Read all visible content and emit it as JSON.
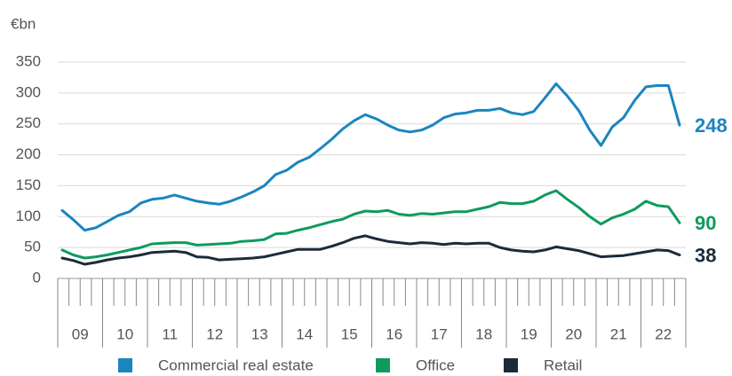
{
  "chart_data": {
    "type": "line",
    "y_label": "€bn",
    "year_labels": [
      "09",
      "10",
      "11",
      "12",
      "13",
      "14",
      "15",
      "16",
      "17",
      "18",
      "19",
      "20",
      "21",
      "22"
    ],
    "ylim": [
      0,
      350
    ],
    "yticks": [
      0,
      50,
      100,
      150,
      200,
      250,
      300,
      350
    ],
    "grid": true,
    "series": [
      {
        "name": "Commercial real estate",
        "color": "#1a85c0",
        "values": [
          110,
          95,
          78,
          82,
          92,
          102,
          108,
          122,
          128,
          130,
          135,
          130,
          125,
          122,
          120,
          125,
          132,
          140,
          150,
          168,
          175,
          188,
          196,
          210,
          225,
          242,
          255,
          265,
          258,
          248,
          240,
          237,
          240,
          248,
          260,
          266,
          268,
          272,
          272,
          275,
          268,
          265,
          270,
          292,
          315,
          295,
          272,
          240,
          215,
          245,
          260,
          288,
          310,
          312,
          312,
          248
        ]
      },
      {
        "name": "Office",
        "color": "#0f9a5e",
        "values": [
          46,
          38,
          33,
          35,
          38,
          42,
          46,
          50,
          56,
          57,
          58,
          58,
          54,
          55,
          56,
          57,
          60,
          61,
          63,
          72,
          73,
          78,
          82,
          87,
          92,
          96,
          104,
          109,
          108,
          110,
          104,
          102,
          105,
          104,
          106,
          108,
          108,
          112,
          116,
          123,
          121,
          121,
          125,
          135,
          142,
          128,
          115,
          100,
          88,
          98,
          104,
          112,
          125,
          118,
          116,
          90
        ]
      },
      {
        "name": "Retail",
        "color": "#1c2b3a",
        "values": [
          33,
          29,
          23,
          26,
          30,
          33,
          35,
          38,
          42,
          43,
          44,
          42,
          35,
          34,
          30,
          31,
          32,
          33,
          35,
          39,
          43,
          47,
          47,
          47,
          52,
          58,
          65,
          69,
          64,
          60,
          58,
          56,
          58,
          57,
          55,
          57,
          56,
          57,
          57,
          50,
          46,
          44,
          43,
          46,
          51,
          48,
          45,
          40,
          35,
          36,
          37,
          40,
          43,
          46,
          45,
          38
        ]
      }
    ]
  }
}
